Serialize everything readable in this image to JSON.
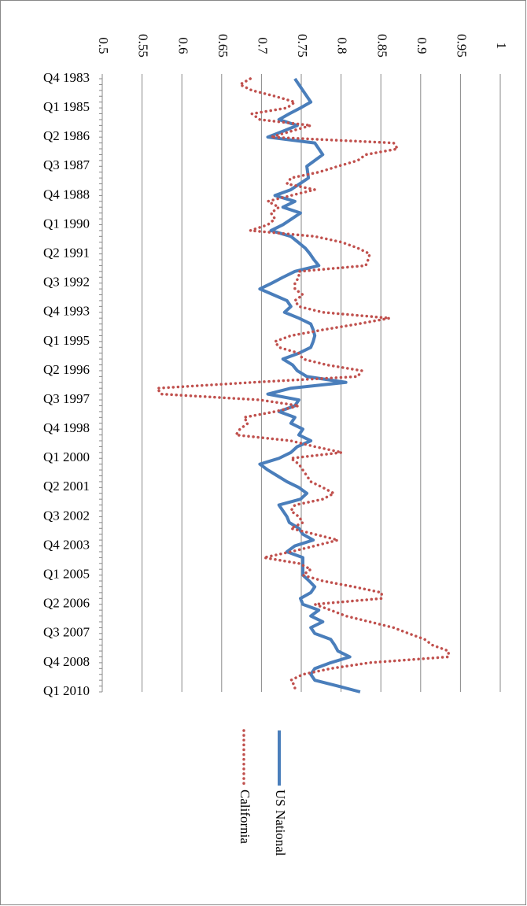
{
  "chart_data": {
    "type": "line",
    "orientation": "horizontal",
    "categories": [
      "Q4 1983",
      null,
      null,
      null,
      null,
      "Q1 1985",
      null,
      null,
      null,
      null,
      "Q2 1986",
      null,
      null,
      null,
      null,
      "Q3 1987",
      null,
      null,
      null,
      null,
      "Q4 1988",
      null,
      null,
      null,
      null,
      "Q1 1990",
      null,
      null,
      null,
      null,
      "Q2 1991",
      null,
      null,
      null,
      null,
      "Q3 1992",
      null,
      null,
      null,
      null,
      "Q4 1993",
      null,
      null,
      null,
      null,
      "Q1 1995",
      null,
      null,
      null,
      null,
      "Q2 1996",
      null,
      null,
      null,
      null,
      "Q3 1997",
      null,
      null,
      null,
      null,
      "Q4 1998",
      null,
      null,
      null,
      null,
      "Q1 2000",
      null,
      null,
      null,
      null,
      "Q2 2001",
      null,
      null,
      null,
      null,
      "Q3 2002",
      null,
      null,
      null,
      null,
      "Q4 2003",
      null,
      null,
      null,
      null,
      "Q1 2005",
      null,
      null,
      null,
      null,
      "Q2 2006",
      null,
      null,
      null,
      null,
      "Q3 2007",
      null,
      null,
      null,
      null,
      "Q4 2008",
      null,
      null,
      null,
      null,
      "Q1 2010"
    ],
    "series": [
      {
        "name": "US National",
        "color": "#4a7ebb",
        "dash": "solid",
        "values": [
          0.742,
          0.747,
          0.752,
          0.757,
          0.762,
          0.749,
          0.735,
          0.722,
          0.745,
          0.727,
          0.708,
          0.767,
          0.772,
          0.777,
          0.767,
          0.757,
          0.758,
          0.759,
          0.748,
          0.737,
          0.717,
          0.742,
          0.727,
          0.749,
          0.738,
          0.727,
          0.712,
          0.737,
          0.746,
          0.755,
          0.761,
          0.766,
          0.772,
          0.742,
          0.727,
          0.713,
          0.698,
          0.715,
          0.732,
          0.737,
          0.729,
          0.747,
          0.762,
          0.765,
          0.767,
          0.765,
          0.762,
          0.747,
          0.727,
          0.739,
          0.745,
          0.757,
          0.806,
          0.737,
          0.708,
          0.747,
          0.742,
          0.722,
          0.742,
          0.737,
          0.752,
          0.747,
          0.762,
          0.745,
          0.737,
          0.722,
          0.698,
          0.708,
          0.72,
          0.732,
          0.747,
          0.757,
          0.749,
          0.722,
          0.727,
          0.732,
          0.735,
          0.747,
          0.752,
          0.765,
          0.742,
          0.732,
          0.752,
          0.752,
          0.752,
          0.752,
          0.76,
          0.767,
          0.762,
          0.749,
          0.752,
          0.772,
          0.762,
          0.777,
          0.762,
          0.767,
          0.787,
          0.792,
          0.796,
          0.811,
          0.787,
          0.767,
          0.762,
          0.767,
          0.796,
          0.824
        ]
      },
      {
        "name": "California",
        "color": "#c0504d",
        "dash": "dotted",
        "values": [
          0.686,
          0.673,
          0.688,
          0.717,
          0.742,
          0.732,
          0.688,
          0.698,
          0.762,
          0.737,
          0.712,
          0.866,
          0.871,
          0.831,
          0.821,
          0.796,
          0.772,
          0.737,
          0.732,
          0.767,
          0.737,
          0.708,
          0.722,
          0.712,
          0.717,
          0.708,
          0.686,
          0.767,
          0.801,
          0.821,
          0.836,
          0.834,
          0.831,
          0.747,
          0.747,
          0.742,
          0.742,
          0.752,
          0.742,
          0.747,
          0.777,
          0.861,
          0.821,
          0.777,
          0.737,
          0.717,
          0.722,
          0.747,
          0.752,
          0.782,
          0.826,
          0.821,
          0.688,
          0.569,
          0.574,
          0.698,
          0.747,
          0.717,
          0.678,
          0.683,
          0.673,
          0.668,
          0.737,
          0.767,
          0.801,
          0.737,
          0.747,
          0.752,
          0.757,
          0.762,
          0.777,
          0.791,
          0.777,
          0.742,
          0.737,
          0.747,
          0.752,
          0.737,
          0.767,
          0.796,
          0.767,
          0.737,
          0.703,
          0.747,
          0.762,
          0.752,
          0.777,
          0.816,
          0.851,
          0.851,
          0.767,
          0.787,
          0.806,
          0.836,
          0.866,
          0.885,
          0.905,
          0.915,
          0.935,
          0.935,
          0.836,
          0.787,
          0.752,
          0.737,
          0.742,
          0.742
        ]
      }
    ],
    "ylim": [
      0.5,
      1
    ],
    "yticks": [
      0.5,
      0.55,
      0.6,
      0.65,
      0.7,
      0.75,
      0.8,
      0.85,
      0.9,
      0.95,
      1
    ],
    "grid": true
  }
}
